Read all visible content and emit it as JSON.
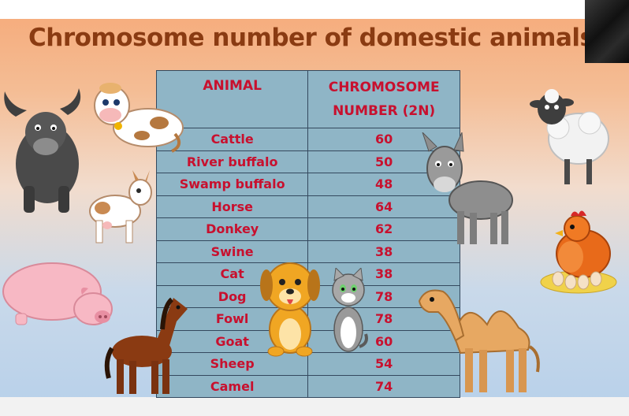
{
  "slide": {
    "title": "Chromosome number of domestic animals"
  },
  "table": {
    "headers": [
      "ANIMAL",
      "CHROMOSOME NUMBER (2N)"
    ],
    "rows": [
      {
        "animal": "Cattle",
        "number": "60"
      },
      {
        "animal": "River buffalo",
        "number": "50"
      },
      {
        "animal": "Swamp buffalo",
        "number": "48"
      },
      {
        "animal": "Horse",
        "number": "64"
      },
      {
        "animal": "Donkey",
        "number": "62"
      },
      {
        "animal": "Swine",
        "number": "38"
      },
      {
        "animal": "Cat",
        "number": "38"
      },
      {
        "animal": "Dog",
        "number": "78"
      },
      {
        "animal": "Fowl",
        "number": "78"
      },
      {
        "animal": "Goat",
        "number": "60"
      },
      {
        "animal": "Sheep",
        "number": "54"
      },
      {
        "animal": "Camel",
        "number": "74"
      }
    ]
  },
  "illustrations": [
    "buffalo-icon",
    "cow-icon",
    "goat-icon",
    "pig-icon",
    "horse-icon",
    "dog-icon",
    "cat-icon",
    "donkey-icon",
    "sheep-icon",
    "hen-icon",
    "camel-icon"
  ],
  "colors": {
    "title": "#8a3b12",
    "table_bg": "#8fb5c6",
    "table_text": "#c8102e",
    "table_border": "#34495e"
  }
}
